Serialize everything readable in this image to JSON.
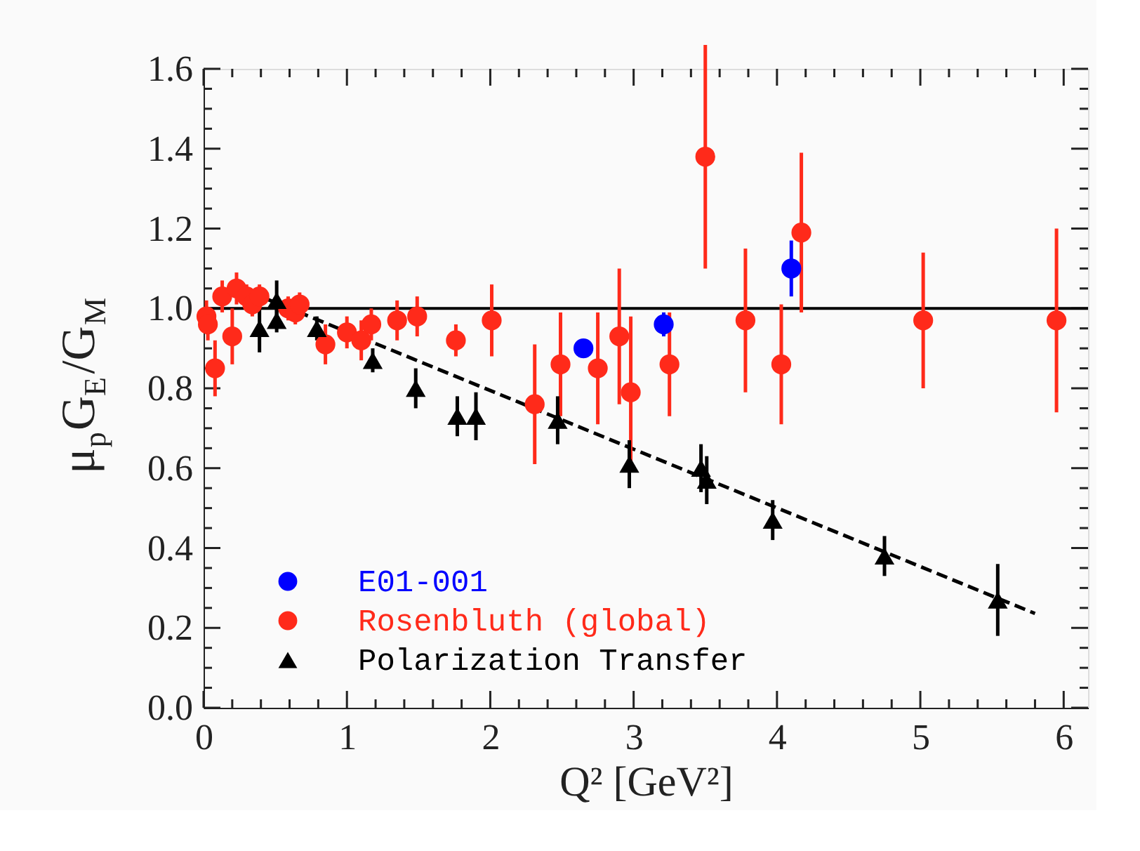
{
  "chart_data": {
    "type": "scatter",
    "xlabel": "Q² [GeV²]",
    "ylabel": "μ$_{p}$G$_{E}$/G$_{M}$",
    "xlim": [
      0,
      6.17
    ],
    "ylim": [
      0,
      1.6
    ],
    "xticks": [
      0,
      {
        "value": 0.2,
        "label": null
      },
      {
        "value": 0.4,
        "label": null
      },
      {
        "value": 0.6,
        "label": null
      },
      {
        "value": 0.8,
        "label": null
      },
      1,
      {
        "value": 1.2,
        "label": null
      },
      {
        "value": 1.4,
        "label": null
      },
      {
        "value": 1.6,
        "label": null
      },
      {
        "value": 1.8,
        "label": null
      },
      2,
      {
        "value": 2.2,
        "label": null
      },
      {
        "value": 2.4,
        "label": null
      },
      {
        "value": 2.6,
        "label": null
      },
      {
        "value": 2.8,
        "label": null
      },
      3,
      {
        "value": 3.2,
        "label": null
      },
      {
        "value": 3.4,
        "label": null
      },
      {
        "value": 3.6,
        "label": null
      },
      {
        "value": 3.8,
        "label": null
      },
      4,
      {
        "value": 4.2,
        "label": null
      },
      {
        "value": 4.4,
        "label": null
      },
      {
        "value": 4.6,
        "label": null
      },
      {
        "value": 4.8,
        "label": null
      },
      5,
      {
        "value": 5.2,
        "label": null
      },
      {
        "value": 5.4,
        "label": null
      },
      {
        "value": 5.6,
        "label": null
      },
      {
        "value": 5.8,
        "label": null
      },
      6
    ],
    "yticks": [
      {
        "value": 0,
        "label": "0.0"
      },
      {
        "value": 0.05,
        "label": null
      },
      {
        "value": 0.1,
        "label": null
      },
      {
        "value": 0.15,
        "label": null
      },
      0.2,
      {
        "value": 0.25,
        "label": null
      },
      {
        "value": 0.3,
        "label": null
      },
      {
        "value": 0.35,
        "label": null
      },
      0.4,
      {
        "value": 0.45,
        "label": null
      },
      {
        "value": 0.5,
        "label": null
      },
      {
        "value": 0.55,
        "label": null
      },
      0.6,
      {
        "value": 0.65,
        "label": null
      },
      {
        "value": 0.7,
        "label": null
      },
      {
        "value": 0.75,
        "label": null
      },
      0.8,
      {
        "value": 0.85,
        "label": null
      },
      {
        "value": 0.9,
        "label": null
      },
      {
        "value": 0.95,
        "label": null
      },
      {
        "value": 1,
        "label": "1.0"
      },
      {
        "value": 1.05,
        "label": null
      },
      {
        "value": 1.1,
        "label": null
      },
      {
        "value": 1.15,
        "label": null
      },
      1.2,
      {
        "value": 1.25,
        "label": null
      },
      {
        "value": 1.3,
        "label": null
      },
      {
        "value": 1.35,
        "label": null
      },
      1.4,
      {
        "value": 1.45,
        "label": null
      },
      {
        "value": 1.5,
        "label": null
      },
      {
        "value": 1.55,
        "label": null
      },
      1.6
    ],
    "grid": false,
    "legend": "bottom left",
    "ref_lines": [
      {
        "axis": "y",
        "value": 1,
        "color": "#000000",
        "line_style": "solid"
      }
    ],
    "series": [
      {
        "name": "E01-001",
        "color": "#0000ff",
        "marker": "circle",
        "x": [
          2.65,
          3.21,
          4.1
        ],
        "values": [
          0.9,
          0.96,
          1.1
        ],
        "errors": [
          0.02,
          0.03,
          0.07
        ]
      },
      {
        "name": "Rosenbluth (global)",
        "color": "#ff2a1a",
        "marker": "circle",
        "x": [
          0.02,
          0.03,
          0.08,
          0.13,
          0.2,
          0.23,
          0.3,
          0.34,
          0.39,
          0.59,
          0.64,
          0.67,
          0.85,
          1.0,
          1.1,
          1.17,
          1.35,
          1.49,
          1.76,
          2.01,
          2.31,
          2.49,
          2.75,
          2.9,
          2.98,
          3.25,
          3.5,
          3.78,
          4.03,
          4.17,
          5.02,
          5.95
        ],
        "values": [
          0.98,
          0.96,
          0.85,
          1.03,
          0.93,
          1.05,
          1.03,
          1.01,
          1.03,
          1.0,
          0.99,
          1.01,
          0.91,
          0.94,
          0.92,
          0.96,
          0.97,
          0.98,
          0.92,
          0.97,
          0.76,
          0.86,
          0.85,
          0.93,
          0.79,
          0.86,
          1.38,
          0.97,
          0.86,
          1.19,
          0.97,
          0.97
        ],
        "errors": [
          0.04,
          0.04,
          0.07,
          0.04,
          0.07,
          0.04,
          0.03,
          0.03,
          0.03,
          0.03,
          0.03,
          0.03,
          0.05,
          0.04,
          0.05,
          0.04,
          0.05,
          0.05,
          0.04,
          0.09,
          0.15,
          0.13,
          0.14,
          0.17,
          0.19,
          0.13,
          0.28,
          0.18,
          0.15,
          0.2,
          0.17,
          0.23
        ]
      },
      {
        "name": "Polarization Transfer",
        "color": "#000000",
        "marker": "triangle",
        "x": [
          0.39,
          0.51,
          0.51,
          0.79,
          1.18,
          1.48,
          1.77,
          1.9,
          2.47,
          2.97,
          3.47,
          3.51,
          3.97,
          4.75,
          5.54
        ],
        "values": [
          0.95,
          1.02,
          0.97,
          0.95,
          0.87,
          0.8,
          0.73,
          0.73,
          0.72,
          0.61,
          0.6,
          0.57,
          0.47,
          0.38,
          0.27
        ],
        "errors": [
          0.06,
          0.05,
          0.03,
          0.03,
          0.03,
          0.05,
          0.05,
          0.06,
          0.06,
          0.06,
          0.06,
          0.06,
          0.05,
          0.05,
          0.09
        ]
      },
      {
        "type": "line",
        "color": "#000000",
        "line_style": "dashed",
        "x": [
          0.22,
          5.8
        ],
        "values": [
          1.056,
          0.236
        ]
      }
    ]
  }
}
